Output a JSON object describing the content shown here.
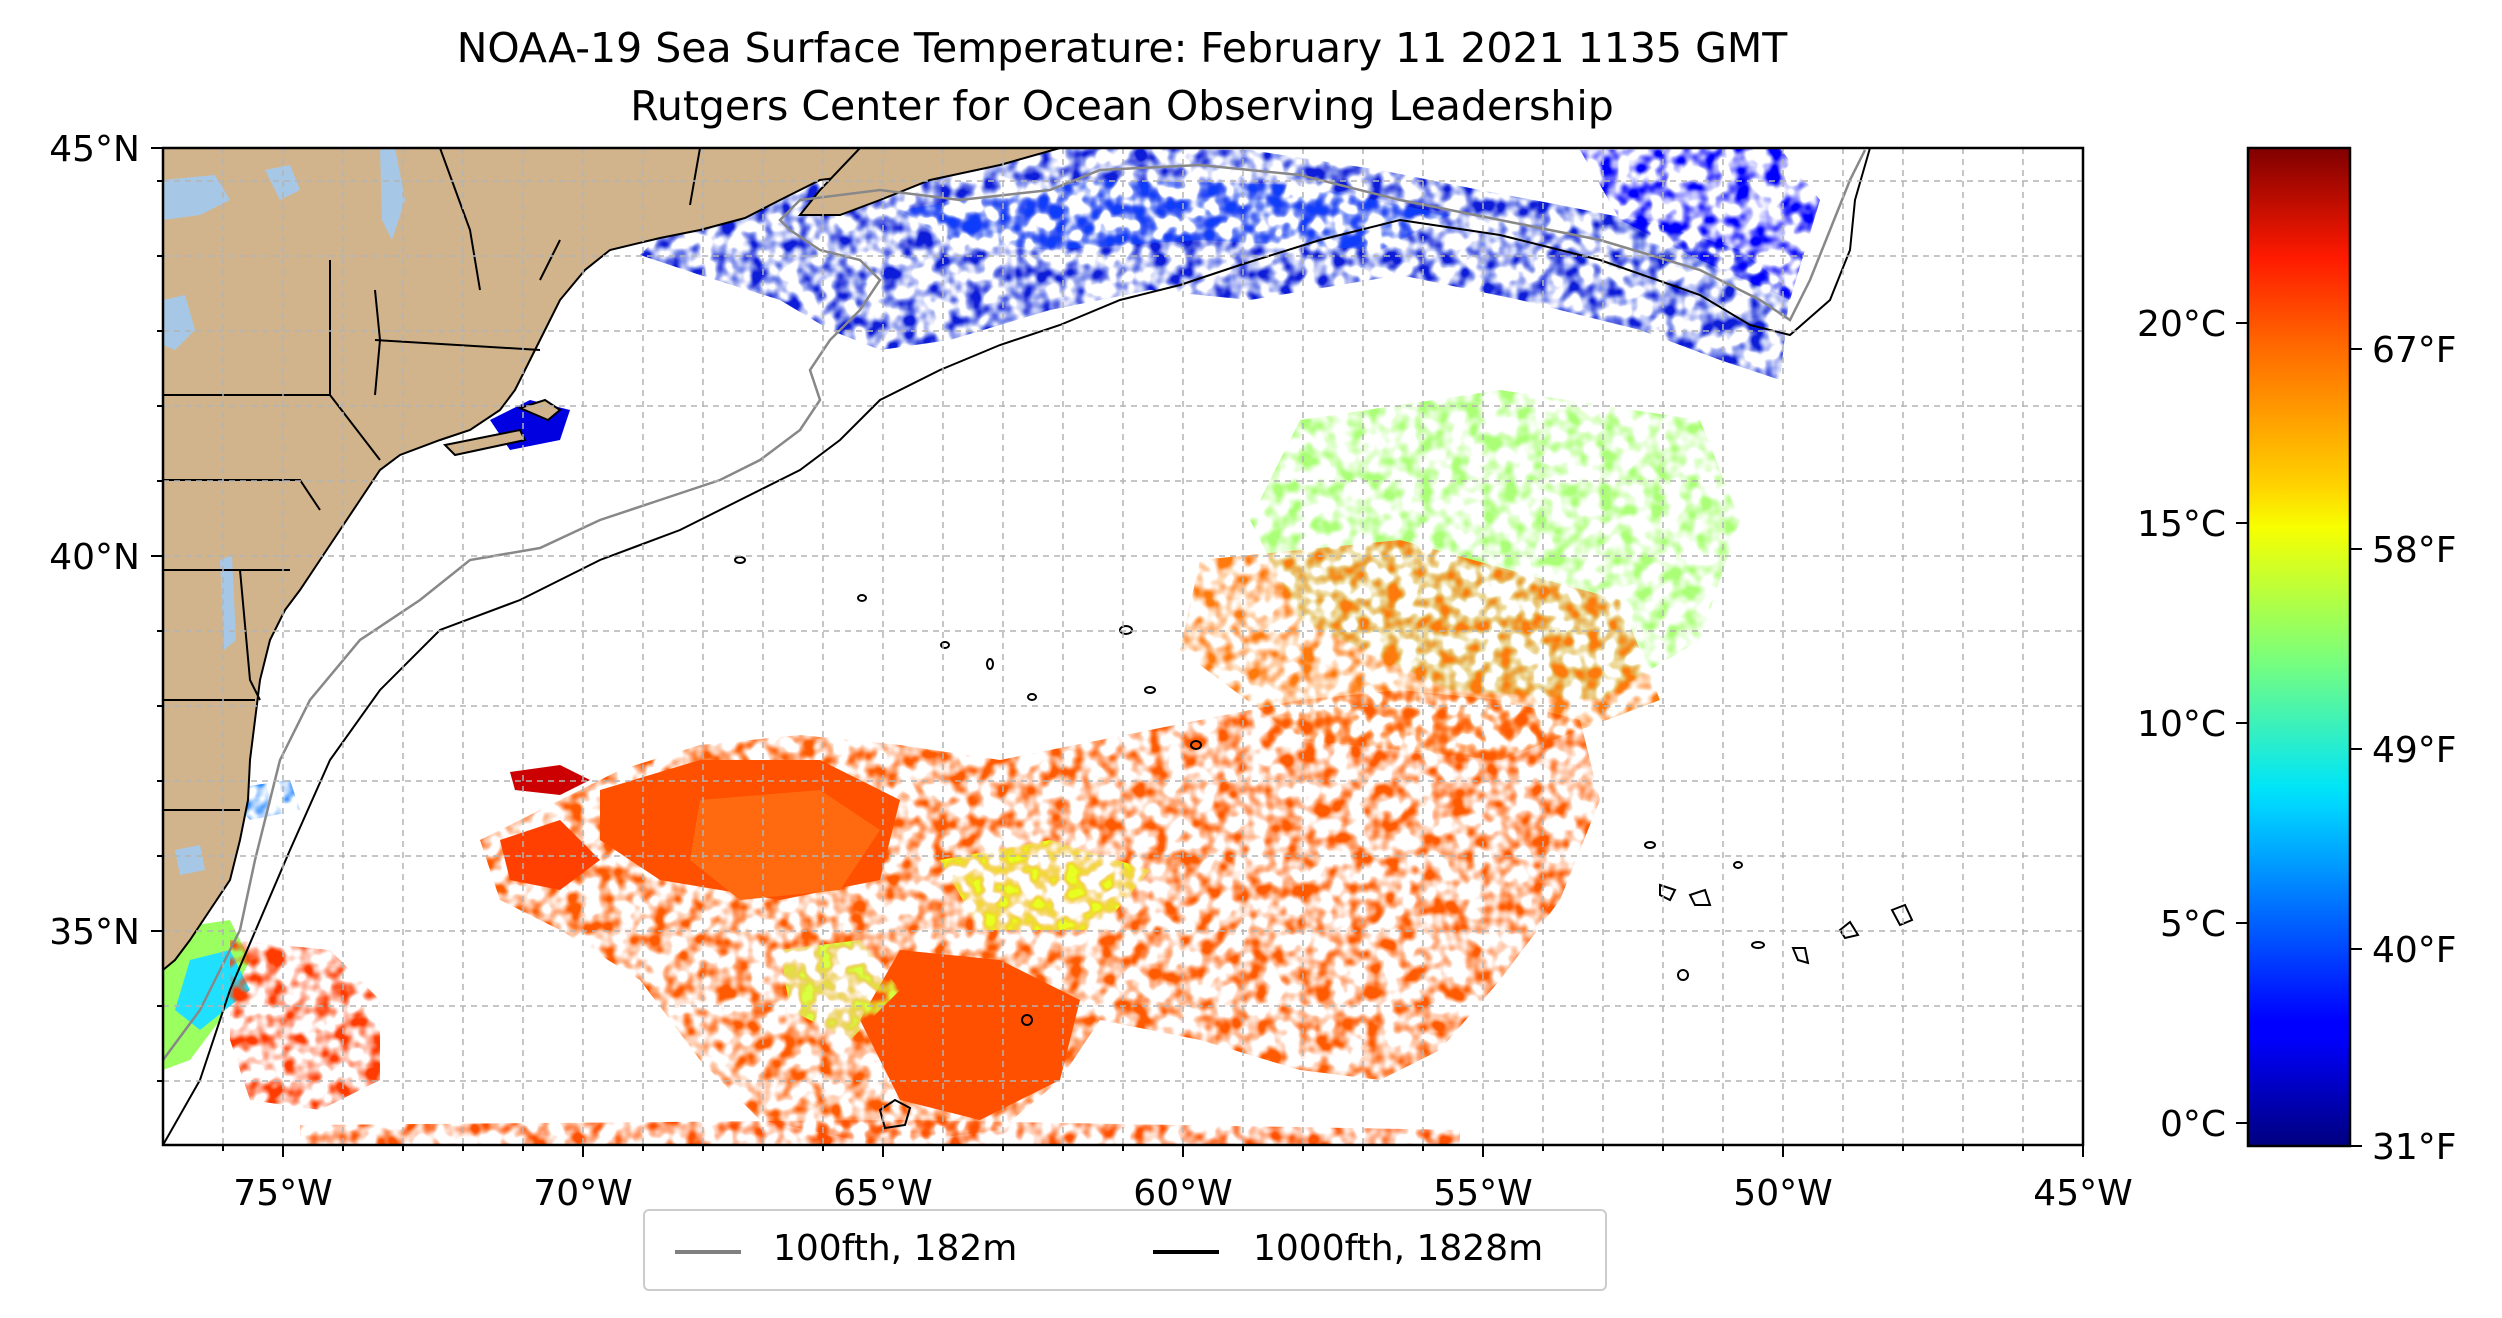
{
  "title": {
    "line1": "NOAA-19 Sea Surface Temperature: February 11 2021 1135 GMT",
    "line2": "Rutgers Center for Ocean Observing Leadership"
  },
  "map": {
    "lon_range": [
      -77,
      -45
    ],
    "lat_range": [
      32.3,
      45
    ],
    "lon_tick_labels": [
      "75°W",
      "70°W",
      "65°W",
      "60°W",
      "55°W",
      "50°W",
      "45°W"
    ],
    "lat_tick_labels": [
      "45°N",
      "40°N",
      "35°N"
    ],
    "gridlines": true,
    "colors": {
      "land": "#d2b48c",
      "lakes": "#a6c8e6",
      "ocean_no_data": "#ffffff",
      "grid": "#b3b3b3"
    }
  },
  "colorbar": {
    "colormap": "jet",
    "celsius_range": [
      -0.5,
      24.5
    ],
    "celsius_tick_labels": [
      "20°C",
      "15°C",
      "10°C",
      "5°C",
      "0°C"
    ],
    "fahrenheit_tick_labels": [
      "67°F",
      "58°F",
      "49°F",
      "40°F",
      "31°F"
    ]
  },
  "legend": {
    "items": [
      {
        "label": "100fth, 182m",
        "color": "#808080"
      },
      {
        "label": "1000fth, 1828m",
        "color": "#000000"
      }
    ]
  }
}
